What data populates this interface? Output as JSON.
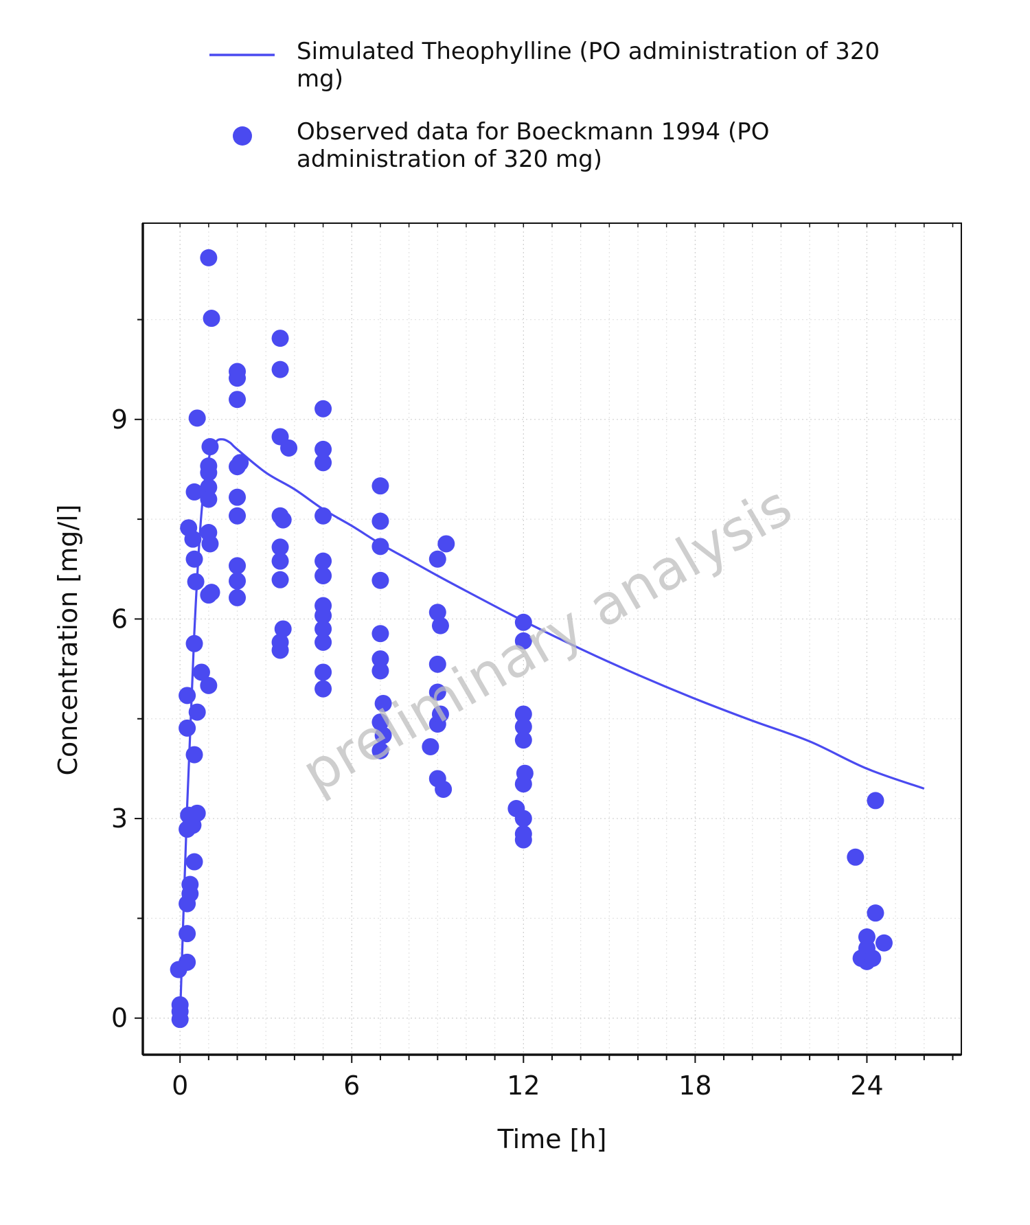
{
  "chart_data": {
    "type": "scatter",
    "xlabel": "Time [h]",
    "ylabel": "Concentration [mg/l]",
    "xlim": [
      -1.3,
      27.3
    ],
    "ylim": [
      -0.55,
      11.95
    ],
    "xticks": [
      0,
      6,
      12,
      18,
      24
    ],
    "yticks": [
      0,
      3,
      6,
      9
    ],
    "grid": true,
    "legend_position": "top",
    "watermark": "preliminary analysis",
    "series": [
      {
        "name": "Simulated Theophylline (PO administration of 320 mg)",
        "kind": "line",
        "color": "#4a4af0",
        "x": [
          0,
          0.25,
          0.5,
          0.75,
          1.0,
          1.25,
          1.5,
          1.75,
          2,
          3,
          4,
          5,
          6,
          7,
          8,
          9,
          10,
          12,
          14,
          16,
          18,
          20,
          22,
          24,
          26
        ],
        "y": [
          0,
          3.2,
          5.8,
          7.6,
          8.4,
          8.66,
          8.7,
          8.65,
          8.55,
          8.2,
          7.95,
          7.65,
          7.4,
          7.13,
          6.89,
          6.65,
          6.42,
          5.97,
          5.55,
          5.16,
          4.8,
          4.47,
          4.16,
          3.75,
          3.45
        ]
      },
      {
        "name": "Observed data for Boeckmann 1994 (PO administration of 320 mg)",
        "kind": "scatter",
        "color": "#4a4af0",
        "points": [
          [
            0,
            0.2
          ],
          [
            0,
            0.1
          ],
          [
            0,
            -0.02
          ],
          [
            -0.05,
            0.73
          ],
          [
            0.25,
            0.84
          ],
          [
            0.25,
            1.27
          ],
          [
            0.25,
            1.72
          ],
          [
            0.25,
            2.84
          ],
          [
            0.3,
            3.05
          ],
          [
            0.25,
            4.36
          ],
          [
            0.25,
            4.85
          ],
          [
            0.3,
            7.37
          ],
          [
            0.35,
            2.01
          ],
          [
            0.35,
            1.87
          ],
          [
            0.45,
            2.9
          ],
          [
            0.45,
            7.2
          ],
          [
            0.5,
            2.35
          ],
          [
            0.5,
            3.96
          ],
          [
            0.5,
            5.63
          ],
          [
            0.5,
            6.9
          ],
          [
            0.5,
            7.91
          ],
          [
            0.55,
            6.56
          ],
          [
            0.6,
            3.08
          ],
          [
            0.6,
            4.6
          ],
          [
            0.6,
            9.02
          ],
          [
            0.75,
            5.2
          ],
          [
            1.0,
            11.43
          ],
          [
            1.0,
            8.3
          ],
          [
            1.0,
            8.2
          ],
          [
            1.0,
            7.98
          ],
          [
            1.0,
            7.8
          ],
          [
            1.0,
            7.3
          ],
          [
            1.0,
            6.36
          ],
          [
            1.0,
            5.0
          ],
          [
            1.05,
            8.59
          ],
          [
            1.05,
            7.13
          ],
          [
            1.1,
            10.52
          ],
          [
            1.1,
            6.4
          ],
          [
            2.0,
            9.72
          ],
          [
            2.0,
            9.62
          ],
          [
            2.0,
            9.3
          ],
          [
            2.0,
            8.29
          ],
          [
            2.0,
            7.83
          ],
          [
            2.0,
            7.55
          ],
          [
            2.0,
            6.8
          ],
          [
            2.0,
            6.57
          ],
          [
            2.0,
            6.32
          ],
          [
            2.1,
            8.35
          ],
          [
            3.5,
            10.22
          ],
          [
            3.5,
            9.75
          ],
          [
            3.5,
            8.74
          ],
          [
            3.5,
            7.55
          ],
          [
            3.5,
            7.08
          ],
          [
            3.5,
            6.87
          ],
          [
            3.5,
            6.59
          ],
          [
            3.5,
            5.65
          ],
          [
            3.5,
            5.53
          ],
          [
            3.6,
            7.49
          ],
          [
            3.6,
            5.85
          ],
          [
            3.8,
            8.57
          ],
          [
            5.0,
            9.16
          ],
          [
            5.0,
            8.55
          ],
          [
            5.0,
            8.35
          ],
          [
            5.0,
            7.55
          ],
          [
            5.0,
            6.87
          ],
          [
            5.0,
            6.65
          ],
          [
            5.0,
            6.2
          ],
          [
            5.0,
            6.05
          ],
          [
            5.0,
            5.85
          ],
          [
            5.0,
            5.65
          ],
          [
            5.0,
            5.2
          ],
          [
            5.0,
            4.95
          ],
          [
            7.0,
            8.0
          ],
          [
            7.0,
            7.47
          ],
          [
            7.0,
            7.09
          ],
          [
            7.0,
            6.58
          ],
          [
            7.0,
            5.78
          ],
          [
            7.0,
            5.4
          ],
          [
            7.0,
            5.22
          ],
          [
            7.0,
            4.45
          ],
          [
            7.0,
            4.02
          ],
          [
            7.1,
            4.73
          ],
          [
            7.1,
            4.25
          ],
          [
            8.75,
            4.08
          ],
          [
            9.0,
            6.9
          ],
          [
            9.0,
            6.1
          ],
          [
            9.0,
            5.32
          ],
          [
            9.0,
            4.9
          ],
          [
            9.0,
            4.42
          ],
          [
            9.0,
            3.6
          ],
          [
            9.1,
            5.9
          ],
          [
            9.1,
            4.57
          ],
          [
            9.2,
            3.44
          ],
          [
            9.3,
            7.13
          ],
          [
            11.75,
            3.15
          ],
          [
            12.0,
            5.95
          ],
          [
            12.0,
            5.67
          ],
          [
            12.0,
            4.57
          ],
          [
            12.0,
            4.38
          ],
          [
            12.0,
            4.18
          ],
          [
            12.0,
            3.52
          ],
          [
            12.0,
            3.0
          ],
          [
            12.0,
            2.77
          ],
          [
            12.0,
            2.68
          ],
          [
            12.05,
            3.68
          ],
          [
            23.6,
            2.42
          ],
          [
            23.8,
            0.9
          ],
          [
            24.0,
            1.22
          ],
          [
            24.0,
            1.05
          ],
          [
            24.0,
            0.85
          ],
          [
            24.2,
            0.9
          ],
          [
            24.3,
            3.27
          ],
          [
            24.3,
            1.58
          ],
          [
            24.6,
            1.13
          ]
        ]
      }
    ]
  }
}
